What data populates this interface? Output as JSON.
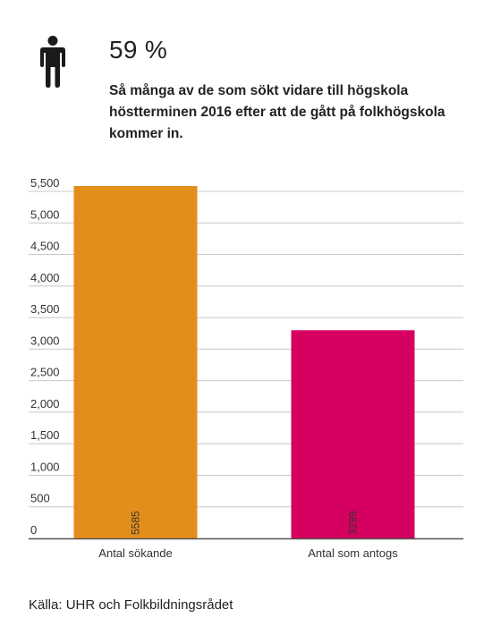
{
  "stat": {
    "value": "59 %",
    "description": "Så många av de som sökt vidare till högskola höstterminen 2016 efter att de gått på folkhögskola kommer in."
  },
  "icon": "person-icon",
  "chart_data": {
    "type": "bar",
    "categories": [
      "Antal sökande",
      "Antal som antogs"
    ],
    "values": [
      5585,
      3299
    ],
    "data_labels": [
      "5585",
      "3299"
    ],
    "colors": [
      "#E38E1B",
      "#D5005F"
    ],
    "ylim": [
      0,
      5500
    ],
    "yticks": [
      0,
      500,
      1000,
      1500,
      2000,
      2500,
      3000,
      3500,
      4000,
      4500,
      5000,
      5500
    ],
    "ytick_labels": [
      "0",
      "500",
      "1,000",
      "1,500",
      "2,000",
      "2,500",
      "3,000",
      "3,500",
      "4,000",
      "4,500",
      "5,000",
      "5,500"
    ],
    "grid": true,
    "title": "",
    "xlabel": "",
    "ylabel": ""
  },
  "source": "Källa: UHR och Folkbildningsrådet"
}
